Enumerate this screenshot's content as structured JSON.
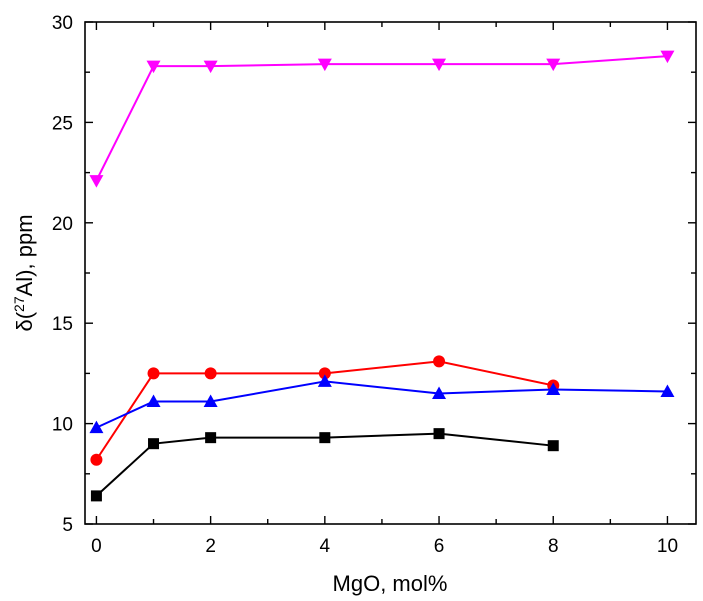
{
  "chart_data": {
    "type": "line",
    "title": "",
    "xlabel": "MgO, mol%",
    "ylabel_parts": {
      "prefix": "δ(",
      "sup": "27",
      "element": "Al), ppm"
    },
    "xlim": [
      -0.2,
      10.5
    ],
    "ylim": [
      5,
      30
    ],
    "xticks": [
      0,
      2,
      4,
      6,
      8,
      10
    ],
    "yticks": [
      5,
      10,
      15,
      20,
      25,
      30
    ],
    "grid": false,
    "legend": "none",
    "series": [
      {
        "marker": "square",
        "color": "#000000",
        "x": [
          0,
          1,
          2,
          4,
          6,
          8
        ],
        "y": [
          6.4,
          9.0,
          9.3,
          9.3,
          9.5,
          8.9
        ]
      },
      {
        "marker": "circle",
        "color": "#ff0000",
        "x": [
          0,
          1,
          2,
          4,
          6,
          8
        ],
        "y": [
          8.2,
          12.5,
          12.5,
          12.5,
          13.1,
          11.9
        ]
      },
      {
        "marker": "triangle-up",
        "color": "#0000ff",
        "x": [
          0,
          1,
          2,
          4,
          6,
          8,
          10
        ],
        "y": [
          9.8,
          11.1,
          11.1,
          12.1,
          11.5,
          11.7,
          11.6
        ]
      },
      {
        "marker": "triangle-down",
        "color": "#ff00ff",
        "x": [
          0,
          1,
          2,
          4,
          6,
          8,
          10
        ],
        "y": [
          22.1,
          27.8,
          27.8,
          27.9,
          27.9,
          27.9,
          28.3
        ]
      }
    ]
  }
}
